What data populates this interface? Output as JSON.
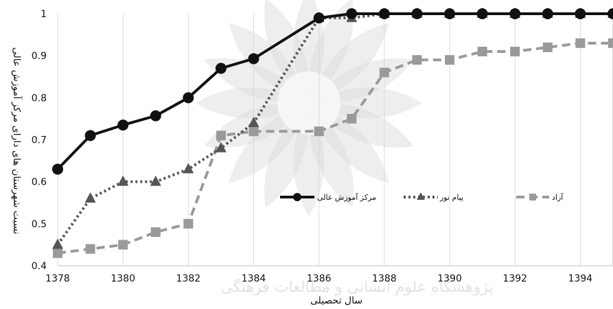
{
  "chart_data": {
    "type": "line",
    "title": "",
    "xlabel": "سال تحصیلی",
    "ylabel": "نسبت شهرستان های دارای مرکز آموزش عالی",
    "x": [
      1378,
      1379,
      1380,
      1381,
      1382,
      1383,
      1384,
      1386,
      1387,
      1388,
      1389,
      1390,
      1391,
      1392,
      1393,
      1394,
      1395
    ],
    "x_ticks": [
      "1378",
      "1380",
      "1382",
      "1384",
      "1386",
      "1388",
      "1390",
      "1392",
      "1394"
    ],
    "y_ticks": [
      "0.4",
      "0.5",
      "0.6",
      "0.7",
      "0.8",
      "0.9",
      "1"
    ],
    "xlim": [
      1378,
      1395
    ],
    "ylim": [
      0.4,
      1.0
    ],
    "grid": "vertical",
    "legend_position": "center-right",
    "series": [
      {
        "name": "مرکز آموزش عالی",
        "color": "#111111",
        "dash": "solid",
        "marker": "circle",
        "points": [
          [
            1378,
            0.63
          ],
          [
            1379,
            0.71
          ],
          [
            1380,
            0.735
          ],
          [
            1381,
            0.757
          ],
          [
            1382,
            0.8
          ],
          [
            1383,
            0.87
          ],
          [
            1384,
            0.893
          ],
          [
            1386,
            0.99
          ],
          [
            1387,
            1.0
          ],
          [
            1388,
            1.0
          ],
          [
            1389,
            1.0
          ],
          [
            1390,
            1.0
          ],
          [
            1391,
            1.0
          ],
          [
            1392,
            1.0
          ],
          [
            1393,
            1.0
          ],
          [
            1394,
            1.0
          ],
          [
            1395,
            1.0
          ]
        ]
      },
      {
        "name": "پیام نور",
        "color": "#555555",
        "dash": "dotted",
        "marker": "triangle",
        "points": [
          [
            1378,
            0.45
          ],
          [
            1379,
            0.56
          ],
          [
            1380,
            0.6
          ],
          [
            1381,
            0.6
          ],
          [
            1382,
            0.63
          ],
          [
            1383,
            0.68
          ],
          [
            1384,
            0.74
          ],
          [
            1386,
            0.99
          ],
          [
            1387,
            0.99
          ],
          [
            1388,
            1.0
          ],
          [
            1389,
            1.0
          ],
          [
            1390,
            1.0
          ],
          [
            1391,
            1.0
          ],
          [
            1392,
            1.0
          ],
          [
            1393,
            1.0
          ],
          [
            1394,
            1.0
          ],
          [
            1395,
            1.0
          ]
        ]
      },
      {
        "name": "آزاد",
        "color": "#9a9a9a",
        "dash": "dashed",
        "marker": "square",
        "points": [
          [
            1378,
            0.43
          ],
          [
            1379,
            0.44
          ],
          [
            1380,
            0.45
          ],
          [
            1381,
            0.48
          ],
          [
            1382,
            0.5
          ],
          [
            1383,
            0.71
          ],
          [
            1384,
            0.72
          ],
          [
            1386,
            0.72
          ],
          [
            1387,
            0.75
          ],
          [
            1388,
            0.86
          ],
          [
            1389,
            0.89
          ],
          [
            1390,
            0.89
          ],
          [
            1391,
            0.91
          ],
          [
            1392,
            0.91
          ],
          [
            1393,
            0.92
          ],
          [
            1394,
            0.93
          ],
          [
            1395,
            0.93
          ]
        ]
      }
    ]
  },
  "watermark_text": "پژوهشگاه علوم انسانی و مطالعات فرهنگی"
}
